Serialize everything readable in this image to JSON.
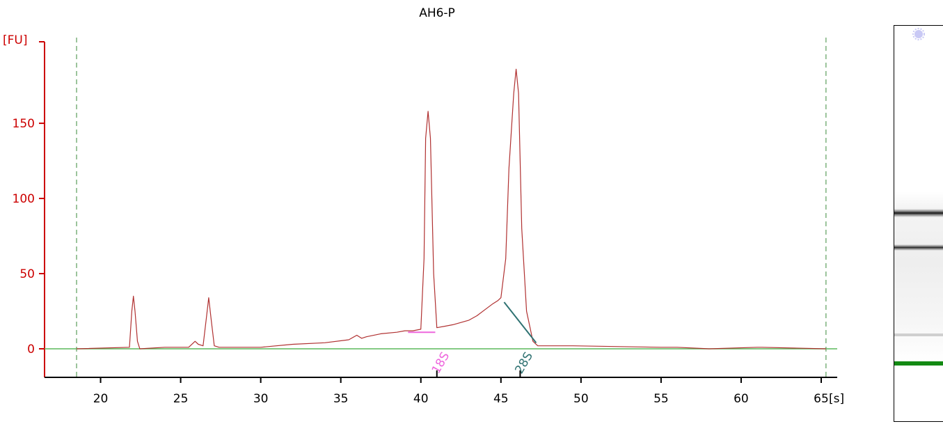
{
  "chart_data": {
    "type": "line",
    "title": "AH6-P",
    "ylabel": "[FU]",
    "xlabel": "[s]",
    "xlim": [
      16.5,
      66
    ],
    "ylim": [
      -19,
      207
    ],
    "x_ticks": [
      20,
      25,
      30,
      35,
      40,
      45,
      50,
      55,
      60,
      65
    ],
    "y_ticks": [
      0,
      50,
      100,
      150
    ],
    "x_tick_labels": [
      "20",
      "25",
      "30",
      "35",
      "40",
      "45",
      "50",
      "55",
      "60",
      "65"
    ],
    "y_tick_labels": [
      "0",
      "50",
      "100",
      "150"
    ],
    "grid": false,
    "series": [
      {
        "color": "#b03030",
        "x": [
          18.5,
          21.8,
          21.95,
          22.05,
          22.15,
          22.3,
          22.45,
          24.0,
          25.5,
          25.9,
          26.1,
          26.4,
          26.6,
          26.75,
          26.9,
          27.1,
          27.4,
          28.0,
          30.0,
          32.0,
          34.0,
          35.5,
          36.0,
          36.3,
          36.6,
          37.5,
          38.5,
          39.0,
          39.5,
          40.0,
          40.2,
          40.3,
          40.45,
          40.6,
          40.8,
          41.0,
          42.0,
          43.0,
          43.5,
          44.0,
          44.5,
          44.8,
          45.0,
          45.3,
          45.5,
          45.8,
          45.95,
          46.1,
          46.3,
          46.6,
          47.0,
          47.3,
          49.0,
          49.5,
          55.0,
          56.0,
          58.0,
          61.0,
          61.3,
          65.3
        ],
        "values": [
          0,
          1,
          25,
          35,
          25,
          5,
          0,
          1,
          1,
          5,
          3,
          2,
          20,
          34,
          20,
          2,
          1,
          1,
          1,
          3,
          4,
          6,
          9,
          7,
          8,
          10,
          11,
          12,
          12,
          13,
          60,
          140,
          158,
          140,
          50,
          14,
          16,
          19,
          22,
          26,
          30,
          32,
          34,
          60,
          120,
          170,
          186,
          170,
          80,
          25,
          5,
          2,
          2,
          2,
          1,
          1,
          0,
          1,
          1,
          0
        ]
      }
    ],
    "baseline_color": "#5cb85c",
    "marker_lines_x": [
      18.5,
      65.3
    ],
    "annotations": [
      {
        "label": "18S",
        "x": 41.0,
        "color": "#ee66dd",
        "baseline_from": 39.2,
        "baseline_to": 40.9,
        "baseline_y": 11
      },
      {
        "label": "28S",
        "x": 46.2,
        "color": "#2f7272",
        "baseline_from": 45.2,
        "baseline_to": 47.2,
        "baseline_y_start": 31,
        "baseline_y_end": 4
      }
    ]
  },
  "gel": {
    "marker_icon": "gear-icon",
    "bands": [
      {
        "name": "28S",
        "color": "#222222"
      },
      {
        "name": "18S",
        "color": "#333333"
      },
      {
        "name": "faint",
        "color": "#bbbbbb"
      },
      {
        "name": "lower-marker",
        "color": "#138a13"
      }
    ]
  }
}
